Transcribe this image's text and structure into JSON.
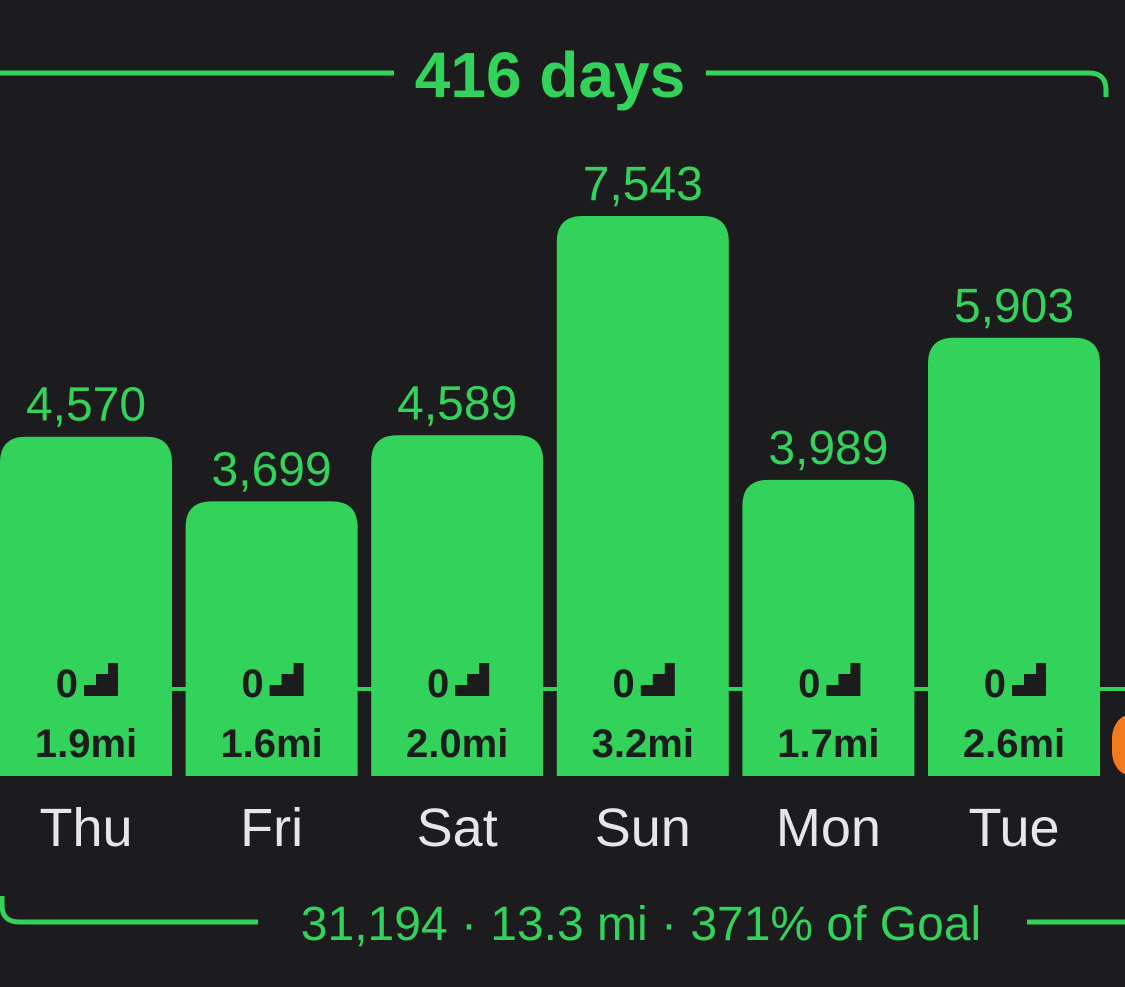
{
  "header": {
    "streak_label": "416 days"
  },
  "footer": {
    "summary": "31,194 · 13.3 mi · 371% of Goal"
  },
  "colors": {
    "background": "#1c1c1e",
    "bar_green": "#32d25b",
    "accent_orange": "#f27a1a",
    "day_label": "#e5e5ea",
    "bar_text": "#1c1c1e"
  },
  "chart_data": {
    "type": "bar",
    "categories": [
      "Thu",
      "Fri",
      "Sat",
      "Sun",
      "Mon",
      "Tue"
    ],
    "values": [
      4570,
      3699,
      4589,
      7543,
      3989,
      5903
    ],
    "value_labels": [
      "4,570",
      "3,699",
      "4,589",
      "7,543",
      "3,989",
      "5,903"
    ],
    "flights": [
      "0",
      "0",
      "0",
      "0",
      "0",
      "0"
    ],
    "distances": [
      "1.9mi",
      "1.6mi",
      "2.0mi",
      "3.2mi",
      "1.7mi",
      "2.6mi"
    ],
    "flights_icon": "stairs-icon",
    "partial_next_bar_color": "#f27a1a"
  }
}
